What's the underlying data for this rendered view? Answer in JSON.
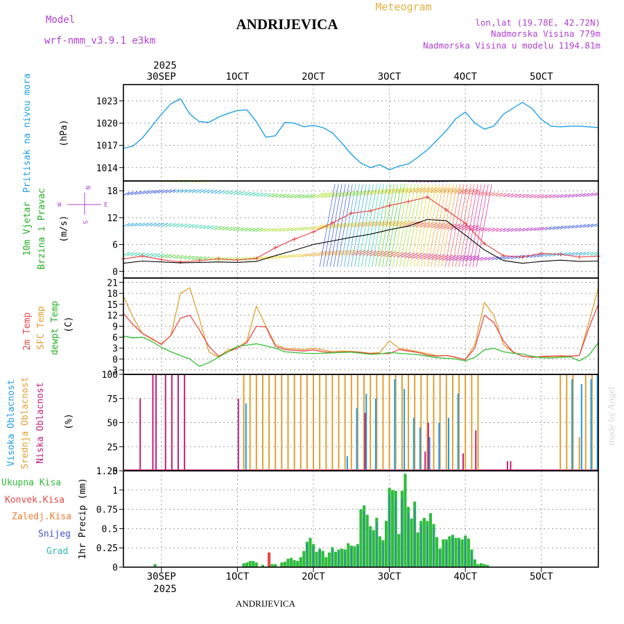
{
  "header": {
    "model_label": "Model",
    "model_name": "wrf-nmm_v3.9.1 e3km",
    "station": "ANDRIJEVICA",
    "product": "Meteogram",
    "lonlat": "lon,lat (19.78E, 42.72N)",
    "elevation": "Nadmorska Visina 779m",
    "model_elevation": "Nadmorska Visina u modelu 1194.81m",
    "year_top": "2025",
    "footer_station": "ANDRIJEVICA",
    "watermark": "made by Angel"
  },
  "time_axis": {
    "top_ticks": [
      "30SEP",
      "1OCT",
      "2OCT",
      "3OCT",
      "4OCT",
      "5OCT"
    ],
    "bottom_ticks": [
      "30SEP",
      "1OCT",
      "2OCT",
      "3OCT",
      "4OCT",
      "5OCT"
    ],
    "year_bottom": "2025"
  },
  "colors": {
    "pressure": "#1ea0e6",
    "temp2m": "#e84848",
    "sfctemp": "#e0a030",
    "dewpt": "#30c030",
    "high_cloud": "#1e9ae6",
    "mid_cloud": "#e0a030",
    "low_cloud": "#c0207a",
    "total_precip": "#2ebd3a",
    "conv_precip": "#e84848",
    "snow": "#4050d0",
    "grad": "#30b8b0"
  },
  "chart_data": [
    {
      "type": "line",
      "name": "pressure",
      "ylabel_main": "Pritisak na nivou mora",
      "ylabel_unit": "(hPa)",
      "yticks": [
        "1023",
        "1020",
        "1017",
        "1014"
      ],
      "ylim": [
        1012.2,
        1025.2
      ],
      "x_hours": [
        0,
        3,
        6,
        9,
        12,
        15,
        18,
        21,
        24,
        27,
        30,
        33,
        36,
        39,
        42,
        45,
        48,
        51,
        54,
        57,
        60,
        63,
        66,
        69,
        72,
        75,
        78,
        81,
        84,
        87,
        90,
        93,
        96,
        99,
        102,
        105,
        108,
        111,
        114,
        117,
        120,
        123,
        126,
        129,
        132,
        135,
        138,
        141,
        144,
        147,
        150
      ],
      "values": [
        1016.6,
        1016.9,
        1018.0,
        1019.6,
        1021.2,
        1022.6,
        1023.3,
        1021.2,
        1020.2,
        1020.1,
        1020.8,
        1021.3,
        1021.7,
        1021.8,
        1020.2,
        1018.1,
        1018.3,
        1020.1,
        1020.0,
        1019.5,
        1019.7,
        1019.4,
        1018.7,
        1017.3,
        1015.8,
        1014.6,
        1014.0,
        1014.4,
        1013.7,
        1014.2,
        1014.5,
        1015.4,
        1016.4,
        1017.7,
        1019.0,
        1020.6,
        1021.5,
        1020.0,
        1019.2,
        1019.6,
        1021.2,
        1022.0,
        1022.8,
        1022.0,
        1020.5,
        1019.6,
        1019.5,
        1019.6,
        1019.6,
        1019.5,
        1019.4
      ]
    },
    {
      "type": "line",
      "name": "wind",
      "ylabel_main": "10m Vjetar",
      "ylabel_sub": "Brzina i Pravac",
      "ylabel_unit": "(m/s)",
      "legend_compass": [
        "N",
        "W",
        "E",
        "S"
      ],
      "yticks": [
        "18",
        "12",
        "6",
        "0"
      ],
      "ylim": [
        -1.5,
        20.2
      ],
      "x_hours": [
        0,
        6,
        12,
        18,
        24,
        30,
        36,
        42,
        48,
        54,
        60,
        66,
        72,
        78,
        84,
        90,
        96,
        102,
        108,
        114,
        120,
        126,
        132,
        138,
        144,
        150
      ],
      "mean_speed": [
        1.8,
        2.3,
        2.1,
        1.9,
        2.0,
        2.1,
        2.0,
        2.2,
        3.5,
        4.7,
        6.0,
        6.8,
        7.6,
        8.3,
        9.3,
        10.1,
        11.6,
        11.3,
        8.1,
        4.8,
        2.4,
        1.8,
        2.2,
        2.5,
        2.2,
        2.3
      ],
      "gust": [
        2.8,
        3.4,
        2.6,
        2.1,
        2.4,
        2.8,
        2.5,
        2.9,
        5.3,
        7.2,
        8.8,
        10.8,
        13.0,
        13.5,
        14.7,
        15.6,
        16.6,
        13.7,
        10.7,
        6.2,
        3.5,
        3.2,
        4.0,
        3.8,
        3.2,
        3.4
      ]
    },
    {
      "type": "line",
      "name": "temperature",
      "ylabel_main": "2m Temp",
      "ylabel_sub": "SFC Temp",
      "ylabel_sub2": "dewpt Temp",
      "ylabel_unit": "(C)",
      "yticks": [
        "21",
        "18",
        "15",
        "12",
        "9",
        "6",
        "3",
        "0",
        "-3"
      ],
      "ylim": [
        -4.2,
        22.2
      ],
      "x_hours": [
        0,
        3,
        6,
        9,
        12,
        15,
        18,
        21,
        24,
        27,
        30,
        33,
        36,
        39,
        42,
        45,
        48,
        51,
        54,
        57,
        60,
        63,
        66,
        69,
        72,
        75,
        78,
        81,
        84,
        87,
        90,
        93,
        96,
        99,
        102,
        105,
        108,
        111,
        114,
        117,
        120,
        123,
        126,
        129,
        132,
        135,
        138,
        141,
        144,
        147,
        150
      ],
      "series": [
        {
          "name": "2m Temp",
          "values": [
            12.5,
            9.5,
            7.0,
            5.6,
            4.0,
            6.5,
            11.2,
            12.0,
            8.0,
            3.5,
            0.8,
            2.0,
            3.0,
            4.5,
            9.0,
            8.8,
            3.5,
            2.6,
            2.4,
            2.2,
            2.5,
            2.0,
            1.8,
            1.9,
            2.0,
            1.8,
            1.5,
            1.5,
            1.5,
            2.6,
            2.2,
            1.8,
            1.1,
            0.8,
            1.0,
            0.5,
            -0.2,
            3.0,
            12.0,
            10.0,
            5.0,
            2.0,
            0.8,
            0.5,
            0.7,
            0.8,
            0.9,
            0.8,
            1.0,
            8.5,
            15.0
          ]
        },
        {
          "name": "SFC Temp",
          "values": [
            17.2,
            11.5,
            7.0,
            5.4,
            4.2,
            6.5,
            18.0,
            19.5,
            11.0,
            2.0,
            0.5,
            2.5,
            3.0,
            5.0,
            14.5,
            9.0,
            4.0,
            3.0,
            2.8,
            2.6,
            3.0,
            2.5,
            2.0,
            2.2,
            2.1,
            1.9,
            1.6,
            1.8,
            5.0,
            3.0,
            2.5,
            2.0,
            1.5,
            0.9,
            1.0,
            0.4,
            -0.2,
            4.0,
            15.5,
            12.0,
            4.0,
            1.9,
            0.8,
            0.5,
            0.6,
            0.7,
            0.8,
            0.7,
            1.0,
            10.0,
            19.5
          ]
        },
        {
          "name": "dewpt Temp",
          "values": [
            6.3,
            5.8,
            6.0,
            4.8,
            3.2,
            2.0,
            1.0,
            0.0,
            -2.0,
            -1.0,
            0.5,
            2.0,
            3.5,
            3.8,
            4.2,
            3.6,
            3.0,
            2.0,
            1.8,
            1.6,
            1.5,
            1.6,
            1.7,
            1.8,
            1.9,
            1.6,
            1.3,
            1.4,
            1.8,
            1.6,
            1.4,
            1.2,
            0.8,
            0.4,
            0.2,
            0.0,
            -0.5,
            0.5,
            2.5,
            3.0,
            2.0,
            1.6,
            1.4,
            0.8,
            0.4,
            0.3,
            0.5,
            0.6,
            -0.5,
            1.0,
            4.5
          ]
        }
      ]
    },
    {
      "type": "bar",
      "name": "cloud",
      "ylabel_main": "Visoka Oblacnost",
      "ylabel_sub": "Srednja Oblacnost",
      "ylabel_sub2": "Niska Oblacnost",
      "ylabel_unit": "(%)",
      "yticks": [
        "100",
        "75",
        "50",
        "25",
        "0"
      ],
      "ylim": [
        0,
        100
      ],
      "series": [
        {
          "name": "Visoka Oblacnost",
          "x_hours": [
            38,
            70,
            73,
            76,
            79,
            85,
            88,
            91,
            93,
            96,
            99,
            102,
            105,
            141,
            144,
            147,
            149
          ],
          "values": [
            70,
            15,
            65,
            80,
            75,
            95,
            85,
            55,
            45,
            35,
            50,
            55,
            80,
            95,
            90,
            95,
            100
          ]
        },
        {
          "name": "Srednja Oblacnost",
          "x_hours": [
            38,
            40,
            42,
            44,
            46,
            48,
            50,
            52,
            54,
            56,
            58,
            60,
            62,
            64,
            66,
            68,
            70,
            72,
            74,
            76,
            78,
            80,
            82,
            84,
            86,
            88,
            90,
            92,
            94,
            96,
            98,
            100,
            102,
            104,
            106,
            108,
            110,
            112,
            138,
            140,
            142,
            144,
            146,
            148,
            150
          ],
          "values": [
            100,
            100,
            100,
            100,
            100,
            100,
            100,
            100,
            100,
            100,
            100,
            100,
            100,
            100,
            100,
            100,
            100,
            100,
            100,
            100,
            100,
            100,
            100,
            100,
            100,
            100,
            100,
            100,
            100,
            100,
            100,
            100,
            100,
            100,
            100,
            100,
            100,
            100,
            100,
            100,
            100,
            35,
            100,
            100,
            100
          ]
        },
        {
          "name": "Niska Oblacnost",
          "x_hours": [
            6,
            10,
            11,
            14,
            16,
            18,
            20,
            37,
            77,
            96,
            97,
            108,
            112,
            122,
            123
          ],
          "values": [
            75,
            100,
            100,
            100,
            100,
            100,
            100,
            75,
            60,
            20,
            50,
            18,
            42,
            10,
            10
          ]
        }
      ]
    },
    {
      "type": "bar",
      "name": "precipitation",
      "ylabel_main": "1hr Precip (mm)",
      "legend": [
        "Ukupna Kisa",
        "Konvek.Kisa",
        "Zaledj.Kisa",
        "Snijeg",
        "Grad"
      ],
      "yticks": [
        "1.25",
        "1",
        "0.75",
        "0.5",
        "0.25",
        "0"
      ],
      "ylim": [
        0,
        1.25
      ],
      "x_hours": [
        10,
        38,
        39,
        40,
        41,
        42,
        44,
        46,
        47,
        48,
        50,
        51,
        52,
        53,
        54,
        55,
        56,
        57,
        58,
        59,
        60,
        61,
        62,
        63,
        64,
        65,
        66,
        67,
        68,
        69,
        70,
        71,
        72,
        73,
        74,
        75,
        76,
        77,
        78,
        79,
        80,
        81,
        82,
        83,
        84,
        85,
        86,
        87,
        88,
        89,
        90,
        91,
        92,
        93,
        94,
        95,
        96,
        97,
        98,
        99,
        100,
        101,
        102,
        103,
        104,
        105,
        106,
        107,
        108,
        109,
        110,
        111,
        112,
        113,
        114,
        115
      ],
      "values": [
        0.04,
        0.05,
        0.06,
        0.08,
        0.08,
        0.06,
        0.03,
        0.19,
        0.04,
        0.04,
        0.06,
        0.07,
        0.11,
        0.12,
        0.09,
        0.08,
        0.13,
        0.21,
        0.33,
        0.38,
        0.3,
        0.2,
        0.24,
        0.21,
        0.13,
        0.19,
        0.26,
        0.2,
        0.23,
        0.24,
        0.23,
        0.31,
        0.28,
        0.27,
        0.3,
        0.75,
        0.8,
        0.68,
        0.53,
        0.48,
        0.64,
        0.4,
        0.35,
        0.6,
        1.03,
        1.0,
        0.99,
        0.43,
        0.99,
        1.21,
        0.78,
        0.63,
        0.85,
        0.45,
        0.6,
        0.64,
        0.6,
        0.7,
        0.56,
        0.39,
        0.24,
        0.36,
        0.36,
        0.4,
        0.42,
        0.38,
        0.38,
        0.36,
        0.41,
        0.37,
        0.23,
        0.1,
        0.04,
        0.05,
        0.04,
        0.03
      ]
    }
  ]
}
